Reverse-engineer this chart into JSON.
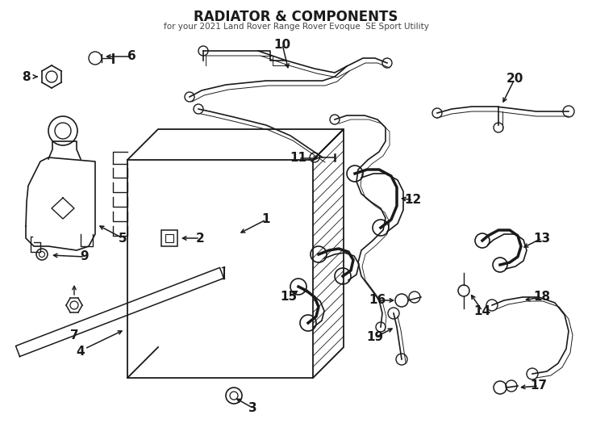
{
  "title": "RADIATOR & COMPONENTS",
  "subtitle": "for your 2021 Land Rover Range Rover Evoque  SE Sport Utility",
  "bg_color": "#ffffff",
  "line_color": "#1a1a1a",
  "fig_w": 7.34,
  "fig_h": 5.4,
  "dpi": 100
}
